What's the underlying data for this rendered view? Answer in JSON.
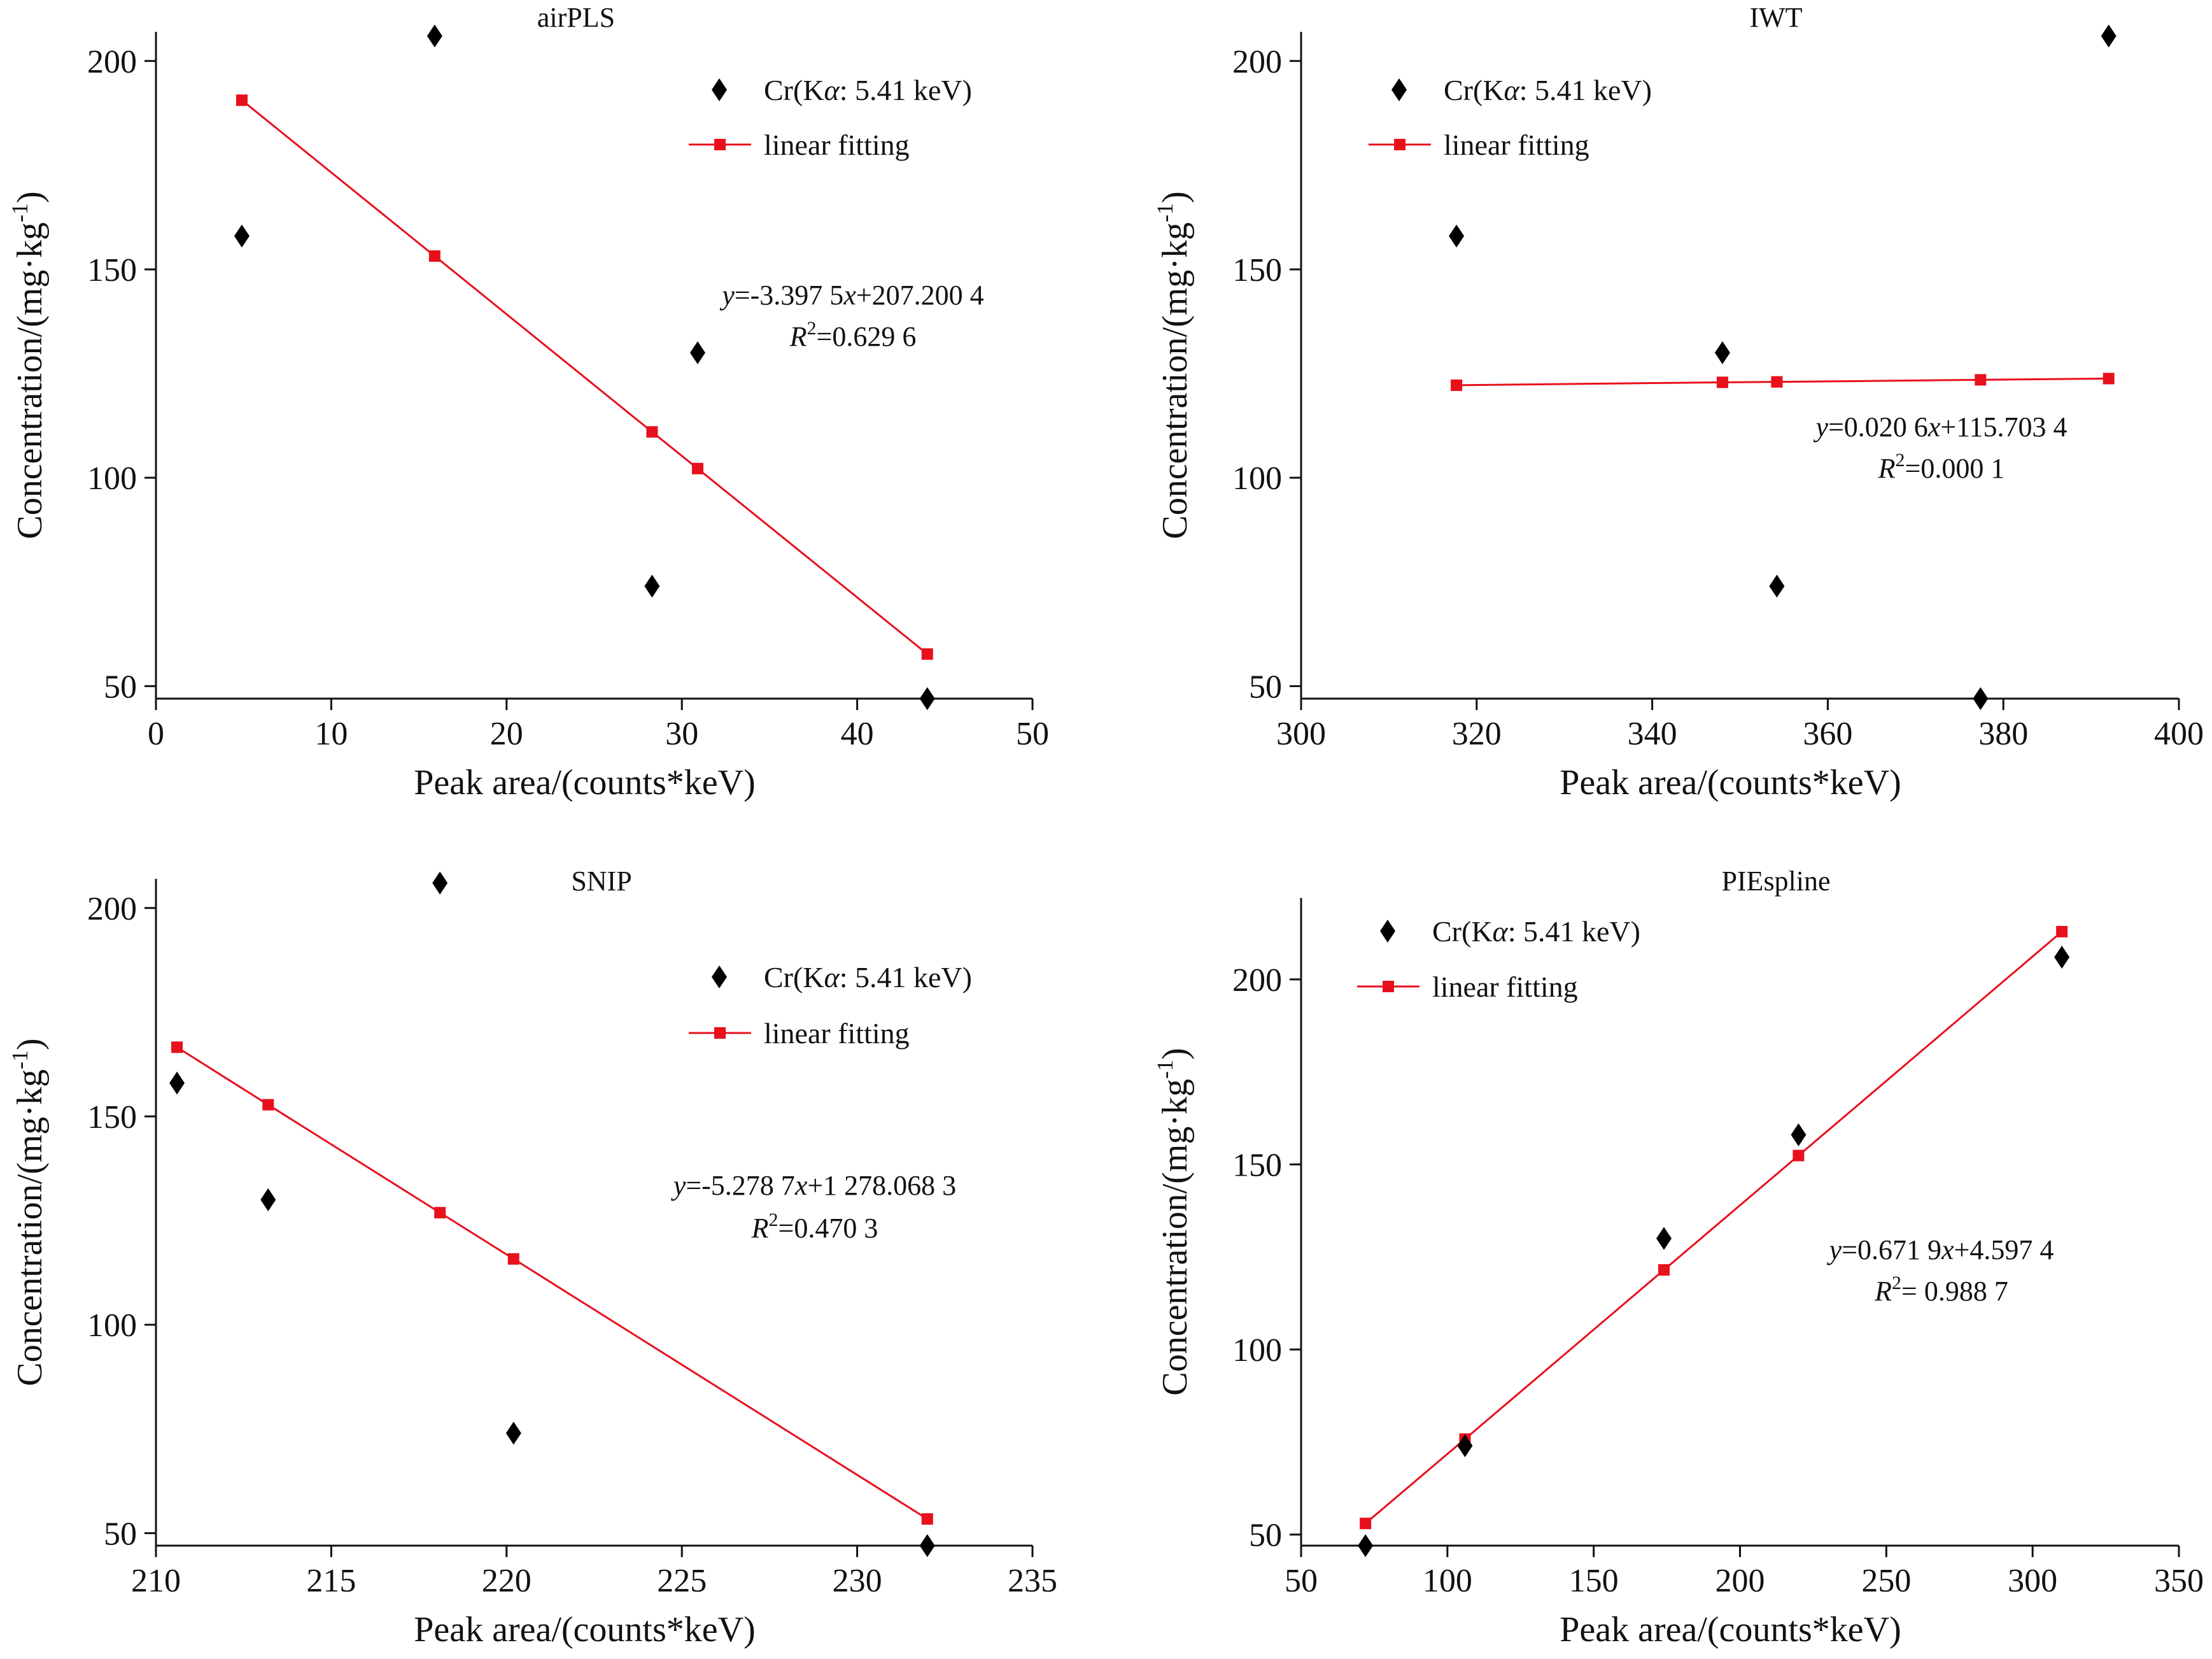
{
  "colors": {
    "data": "#000000",
    "fit": "#e8101c",
    "axis": "#111111"
  },
  "chart_data": [
    {
      "type": "scatter",
      "title": "airPLS",
      "xlabel": "Peak area/(counts*keV)",
      "ylabel": "Concentration/(mg·kg-1)",
      "ylabel_main": "Concentration/(mg·kg",
      "ylabel_sup": "-1",
      "ylabel_end": ")",
      "xlim": [
        0,
        50
      ],
      "ylim": [
        47,
        207
      ],
      "xticks": [
        0,
        10,
        20,
        30,
        40,
        50
      ],
      "yticks": [
        50,
        100,
        150,
        200
      ],
      "legend_position": "top-right",
      "series": [
        {
          "name": "Cr(Kα: 5.41 keV)",
          "name_main": "Cr(K",
          "name_alpha": "α",
          "name_rest": ": 5.41 keV)",
          "kind": "scatter",
          "marker": "diamond",
          "x": [
            4.9,
            15.9,
            28.3,
            30.9,
            44.0
          ],
          "y": [
            158,
            206,
            74,
            130,
            47
          ]
        },
        {
          "name": "linear fitting",
          "kind": "line",
          "marker": "square",
          "x": [
            4.9,
            15.9,
            28.3,
            30.9,
            44.0
          ],
          "y": [
            190.6,
            153.2,
            111.0,
            102.2,
            57.7
          ]
        }
      ],
      "equation": {
        "y_label": "y",
        "lhs": "=-3.397 5",
        "x_label": "x",
        "rhs": "+207.200 4",
        "r_label": "R",
        "r_sup": "2",
        "r_value": "=0.629 6"
      }
    },
    {
      "type": "scatter",
      "title": "IWT",
      "xlabel": "Peak area/(counts*keV)",
      "ylabel": "Concentration/(mg·kg-1)",
      "ylabel_main": "Concentration/(mg·kg",
      "ylabel_sup": "-1",
      "ylabel_end": ")",
      "xlim": [
        300,
        400
      ],
      "ylim": [
        47,
        207
      ],
      "xticks": [
        300,
        320,
        340,
        360,
        380,
        400
      ],
      "yticks": [
        50,
        100,
        150,
        200
      ],
      "legend_position": "top-left",
      "series": [
        {
          "name": "Cr(Kα: 5.41 keV)",
          "name_main": "Cr(K",
          "name_alpha": "α",
          "name_rest": ": 5.41 keV)",
          "kind": "scatter",
          "marker": "diamond",
          "x": [
            317.7,
            348.0,
            354.2,
            377.4,
            392.0
          ],
          "y": [
            158,
            130,
            74,
            47,
            206
          ]
        },
        {
          "name": "linear fitting",
          "kind": "line",
          "marker": "square",
          "x": [
            317.7,
            348.0,
            354.2,
            377.4,
            392.0
          ],
          "y": [
            122.2,
            122.9,
            123.0,
            123.5,
            123.8
          ]
        }
      ],
      "equation": {
        "y_label": "y",
        "lhs": "=0.020 6",
        "x_label": "x",
        "rhs": "+115.703 4",
        "r_label": "R",
        "r_sup": "2",
        "r_value": "=0.000 1"
      }
    },
    {
      "type": "scatter",
      "title": "SNIP",
      "xlabel": "Peak area/(counts*keV)",
      "ylabel": "Concentration/(mg·kg-1)",
      "ylabel_main": "Concentration/(mg·kg",
      "ylabel_sup": "-1",
      "ylabel_end": ")",
      "xlim": [
        210,
        235
      ],
      "ylim": [
        47,
        207
      ],
      "xticks": [
        210,
        215,
        220,
        225,
        230,
        235
      ],
      "yticks": [
        50,
        100,
        150,
        200
      ],
      "legend_position": "top-right",
      "series": [
        {
          "name": "Cr(Kα: 5.41 keV)",
          "name_main": "Cr(K",
          "name_alpha": "α",
          "name_rest": ": 5.41 keV)",
          "kind": "scatter",
          "marker": "diamond",
          "x": [
            210.6,
            213.2,
            218.1,
            220.2,
            232.0
          ],
          "y": [
            158,
            130,
            206,
            74,
            47
          ]
        },
        {
          "name": "linear fitting",
          "kind": "line",
          "marker": "square",
          "x": [
            210.6,
            213.2,
            218.1,
            220.2,
            232.0
          ],
          "y": [
            166.6,
            152.8,
            126.9,
            115.8,
            53.4
          ]
        }
      ],
      "equation": {
        "y_label": "y",
        "lhs": "=-5.278 7",
        "x_label": "x",
        "rhs": "+1 278.068 3",
        "r_label": "R",
        "r_sup": "2",
        "r_value": "=0.470 3"
      }
    },
    {
      "type": "scatter",
      "title": "PIEspline",
      "xlabel": "Peak area/(counts*keV)",
      "ylabel": "Concentration/(mg·kg-1)",
      "ylabel_main": "Concentration/(mg·kg",
      "ylabel_sup": "-1",
      "ylabel_end": ")",
      "xlim": [
        50,
        350
      ],
      "ylim": [
        47,
        222
      ],
      "xticks": [
        50,
        100,
        150,
        200,
        250,
        300,
        350
      ],
      "yticks": [
        50,
        100,
        150,
        200
      ],
      "legend_position": "top-left",
      "series": [
        {
          "name": "Cr(Kα: 5.41 keV)",
          "name_main": "Cr(K",
          "name_alpha": "α",
          "name_rest": ": 5.41 keV)",
          "kind": "scatter",
          "marker": "diamond",
          "x": [
            72,
            106,
            174,
            220,
            310
          ],
          "y": [
            47,
            74,
            130,
            158,
            206
          ]
        },
        {
          "name": "linear fitting",
          "kind": "line",
          "marker": "square",
          "x": [
            72,
            106,
            174,
            220,
            310
          ],
          "y": [
            53,
            75.8,
            121.5,
            152.4,
            212.9
          ]
        }
      ],
      "equation": {
        "y_label": "y",
        "lhs": "=0.671 9",
        "x_label": "x",
        "rhs": "+4.597 4",
        "r_label": "R",
        "r_sup": "2",
        "r_value": "= 0.988 7"
      }
    }
  ]
}
